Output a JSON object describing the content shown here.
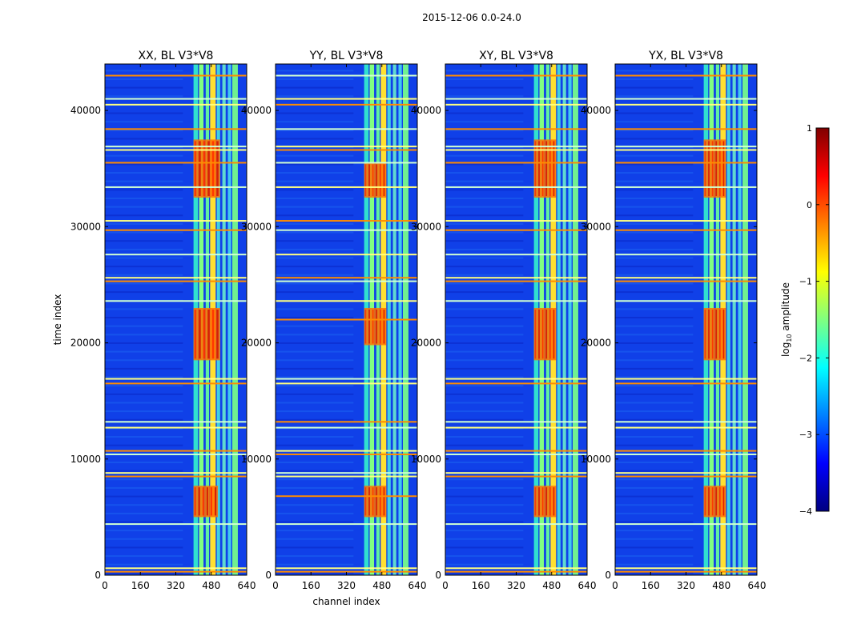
{
  "figure": {
    "suptitle": "2015-12-06 0.0-24.0"
  },
  "colors": {
    "jet": [
      "#000080",
      "#0000ff",
      "#0080ff",
      "#00ffff",
      "#80ff80",
      "#ffff00",
      "#ff8000",
      "#ff0000",
      "#800000"
    ],
    "background_field": "#1040e8"
  },
  "chart_data": [
    {
      "type": "heatmap",
      "title": "XX, BL V3*V8",
      "xlabel": "",
      "ylabel": "time index",
      "xlim": [
        0,
        640
      ],
      "ylim": [
        0,
        44000
      ],
      "xticks": [
        0,
        160,
        320,
        480,
        640
      ],
      "yticks": [
        0,
        10000,
        20000,
        30000,
        40000
      ],
      "high_bands_channels": [
        [
          400,
          420
        ],
        [
          425,
          445
        ],
        [
          455,
          470
        ],
        [
          475,
          500
        ],
        [
          505,
          520
        ],
        [
          530,
          545
        ],
        [
          555,
          570
        ],
        [
          575,
          600
        ]
      ],
      "horizontal_rfi_rows": [
        300,
        600,
        4400,
        8500,
        8800,
        10400,
        10700,
        12700,
        13200,
        16500,
        16900,
        23600,
        25300,
        25600,
        27600,
        29700,
        30500,
        33400,
        35500,
        36600,
        36900,
        38400,
        40500,
        41000,
        43000
      ],
      "hot_regions": [
        {
          "time": [
            5000,
            7700
          ],
          "channels": [
            400,
            510
          ]
        },
        {
          "time": [
            18500,
            23000
          ],
          "channels": [
            400,
            520
          ]
        },
        {
          "time": [
            32500,
            37500
          ],
          "channels": [
            400,
            520
          ]
        }
      ]
    },
    {
      "type": "heatmap",
      "title": "YY, BL V3*V8",
      "xlabel": "channel index",
      "ylabel": "",
      "xlim": [
        0,
        640
      ],
      "ylim": [
        0,
        44000
      ],
      "xticks": [
        0,
        160,
        320,
        480,
        640
      ],
      "yticks": [
        0,
        10000,
        20000,
        30000,
        40000
      ],
      "high_bands_channels": [
        [
          400,
          420
        ],
        [
          425,
          445
        ],
        [
          455,
          470
        ],
        [
          475,
          500
        ],
        [
          505,
          520
        ],
        [
          530,
          545
        ],
        [
          555,
          570
        ],
        [
          575,
          600
        ]
      ],
      "horizontal_rfi_rows": [
        300,
        600,
        4400,
        6800,
        8500,
        8800,
        10400,
        10700,
        12700,
        13200,
        16500,
        16900,
        22000,
        23600,
        25300,
        25600,
        27600,
        29700,
        30500,
        33400,
        35500,
        36600,
        36900,
        38400,
        40500,
        41000,
        43000
      ],
      "hot_regions": [
        {
          "time": [
            5000,
            7700
          ],
          "channels": [
            400,
            500
          ]
        },
        {
          "time": [
            19800,
            23000
          ],
          "channels": [
            400,
            500
          ]
        },
        {
          "time": [
            32500,
            35500
          ],
          "channels": [
            400,
            500
          ]
        }
      ]
    },
    {
      "type": "heatmap",
      "title": "XY, BL V3*V8",
      "xlabel": "",
      "ylabel": "",
      "xlim": [
        0,
        640
      ],
      "ylim": [
        0,
        44000
      ],
      "xticks": [
        0,
        160,
        320,
        480,
        640
      ],
      "yticks": [
        0,
        10000,
        20000,
        30000,
        40000
      ],
      "high_bands_channels": [
        [
          400,
          420
        ],
        [
          425,
          445
        ],
        [
          455,
          470
        ],
        [
          475,
          500
        ],
        [
          505,
          520
        ],
        [
          530,
          545
        ],
        [
          555,
          570
        ],
        [
          575,
          600
        ]
      ],
      "horizontal_rfi_rows": [
        300,
        600,
        4400,
        8500,
        8800,
        10400,
        10700,
        12700,
        13200,
        16500,
        16900,
        23600,
        25300,
        25600,
        27600,
        29700,
        30500,
        33400,
        35500,
        36600,
        36900,
        38400,
        40500,
        41000,
        43000
      ],
      "hot_regions": [
        {
          "time": [
            5000,
            7700
          ],
          "channels": [
            400,
            500
          ]
        },
        {
          "time": [
            18500,
            23000
          ],
          "channels": [
            400,
            500
          ]
        },
        {
          "time": [
            32500,
            37500
          ],
          "channels": [
            400,
            500
          ]
        }
      ]
    },
    {
      "type": "heatmap",
      "title": "YX, BL V3*V8",
      "xlabel": "",
      "ylabel": "",
      "xlim": [
        0,
        640
      ],
      "ylim": [
        0,
        44000
      ],
      "xticks": [
        0,
        160,
        320,
        480,
        640
      ],
      "yticks": [
        0,
        10000,
        20000,
        30000,
        40000
      ],
      "high_bands_channels": [
        [
          400,
          420
        ],
        [
          425,
          445
        ],
        [
          455,
          470
        ],
        [
          475,
          500
        ],
        [
          505,
          520
        ],
        [
          530,
          545
        ],
        [
          555,
          570
        ],
        [
          575,
          600
        ]
      ],
      "horizontal_rfi_rows": [
        300,
        600,
        4400,
        8500,
        8800,
        10400,
        10700,
        12700,
        13200,
        16500,
        16900,
        23600,
        25300,
        25600,
        27600,
        29700,
        30500,
        33400,
        35500,
        36600,
        36900,
        38400,
        40500,
        41000,
        43000
      ],
      "hot_regions": [
        {
          "time": [
            5000,
            7700
          ],
          "channels": [
            400,
            500
          ]
        },
        {
          "time": [
            18500,
            23000
          ],
          "channels": [
            400,
            500
          ]
        },
        {
          "time": [
            32500,
            37500
          ],
          "channels": [
            400,
            500
          ]
        }
      ]
    }
  ],
  "colorbar": {
    "label_prefix": "log",
    "label_sub": "10",
    "label_suffix": " amplitude",
    "range": [
      -4,
      1
    ],
    "ticks": [
      "1",
      "0",
      "−1",
      "−2",
      "−3",
      "−4"
    ]
  }
}
